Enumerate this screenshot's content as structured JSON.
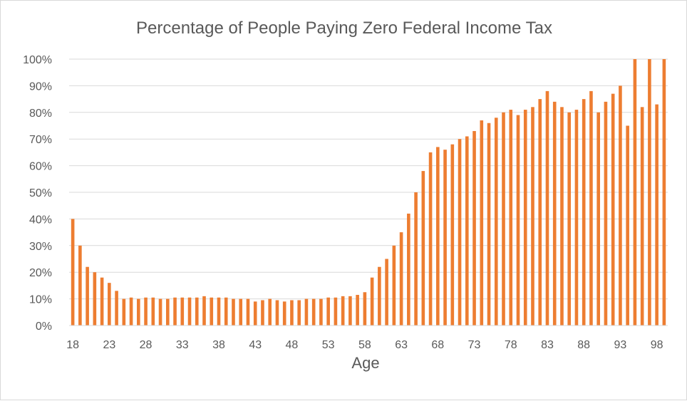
{
  "chart_data": {
    "type": "bar",
    "title": "Percentage of People Paying Zero Federal Income Tax",
    "xlabel": "Age",
    "ylabel": "",
    "ylim": [
      0,
      100
    ],
    "y_ticks": [
      "0%",
      "10%",
      "20%",
      "30%",
      "40%",
      "50%",
      "60%",
      "70%",
      "80%",
      "90%",
      "100%"
    ],
    "x_tick_labels": [
      "18",
      "23",
      "28",
      "33",
      "38",
      "43",
      "48",
      "53",
      "58",
      "63",
      "68",
      "73",
      "78",
      "83",
      "88",
      "93",
      "98"
    ],
    "grid": true,
    "legend": "none",
    "bar_color": "#ED7D31",
    "categories": [
      18,
      19,
      20,
      21,
      22,
      23,
      24,
      25,
      26,
      27,
      28,
      29,
      30,
      31,
      32,
      33,
      34,
      35,
      36,
      37,
      38,
      39,
      40,
      41,
      42,
      43,
      44,
      45,
      46,
      47,
      48,
      49,
      50,
      51,
      52,
      53,
      54,
      55,
      56,
      57,
      58,
      59,
      60,
      61,
      62,
      63,
      64,
      65,
      66,
      67,
      68,
      69,
      70,
      71,
      72,
      73,
      74,
      75,
      76,
      77,
      78,
      79,
      80,
      81,
      82,
      83,
      84,
      85,
      86,
      87,
      88,
      89,
      90,
      91,
      92,
      93,
      94,
      95,
      96,
      97,
      98,
      99
    ],
    "values": [
      40,
      30,
      22,
      20,
      18,
      16,
      13,
      10,
      10.5,
      10,
      10.5,
      10.5,
      10,
      10,
      10.5,
      10.5,
      10.5,
      10.5,
      11,
      10.5,
      10.5,
      10.5,
      10,
      10,
      10,
      9,
      9.5,
      10,
      9.5,
      9,
      9.5,
      9.5,
      10,
      10,
      10,
      10.5,
      10.5,
      11,
      11,
      11.5,
      12.5,
      18,
      22,
      25,
      30,
      35,
      42,
      50,
      58,
      65,
      67,
      66,
      68,
      70,
      71,
      73,
      77,
      76,
      78,
      80,
      81,
      79,
      81,
      82,
      85,
      88,
      84,
      82,
      80,
      81,
      85,
      88,
      80,
      84,
      87,
      90,
      75,
      100,
      82,
      100,
      83,
      100
    ]
  }
}
